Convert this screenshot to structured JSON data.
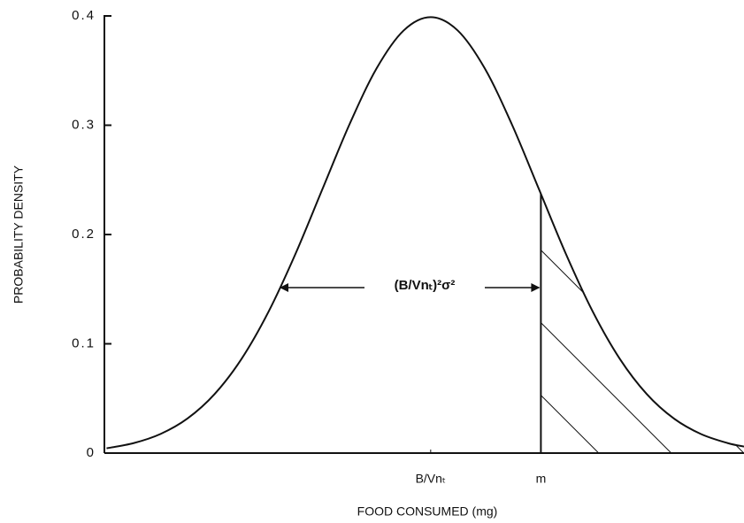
{
  "chart_data": {
    "type": "line",
    "xlabel": "FOOD CONSUMED (mg)",
    "ylabel": "PROBABILITY DENSITY",
    "annotation": "(B/Vnₜ)²σ²",
    "x": [
      -3.0,
      -2.75,
      -2.5,
      -2.25,
      -2.0,
      -1.75,
      -1.5,
      -1.25,
      -1.0,
      -0.75,
      -0.5,
      -0.25,
      0,
      0.25,
      0.5,
      0.75,
      1.0,
      1.25,
      1.5,
      1.75,
      2.0,
      2.25,
      2.5,
      2.75,
      2.9
    ],
    "values": [
      0.0044,
      0.0091,
      0.0175,
      0.0317,
      0.054,
      0.0863,
      0.1295,
      0.1826,
      0.242,
      0.3011,
      0.3521,
      0.3867,
      0.3989,
      0.3867,
      0.3521,
      0.3011,
      0.242,
      0.1826,
      0.1295,
      0.0863,
      0.054,
      0.0317,
      0.0175,
      0.0091,
      0.006
    ],
    "color": "#111111",
    "xlim": [
      -3.02,
      2.9
    ],
    "xticks": [
      {
        "value": 0,
        "label": "B/Vnₜ"
      },
      {
        "value": 1.02,
        "label": "m"
      }
    ],
    "ylim": [
      0,
      0.4
    ],
    "yticks": [
      0,
      0.1,
      0.2,
      0.3,
      0.4
    ],
    "hatched_from_tick": 1
  }
}
